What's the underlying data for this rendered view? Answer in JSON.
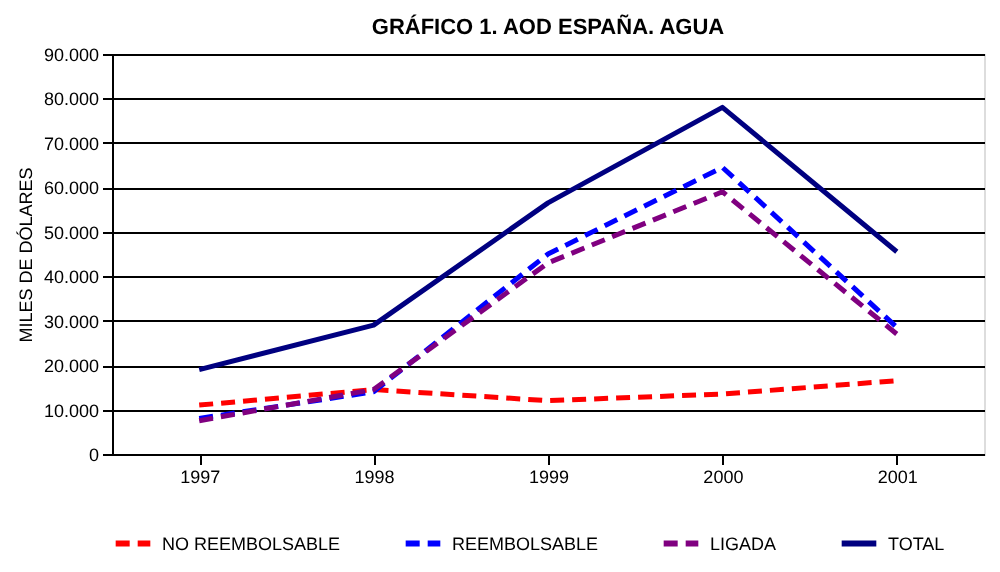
{
  "chart_data": {
    "type": "line",
    "title": "GRÁFICO 1. AOD ESPAÑA. AGUA",
    "ylabel": "MILES DE DÓLARES",
    "categories": [
      "1997",
      "1998",
      "1999",
      "2000",
      "2001"
    ],
    "series": [
      {
        "name": "NO REEMBOLSABLE",
        "color": "#ff0000",
        "line_style": "dashed",
        "values": [
          11000,
          14500,
          12000,
          13500,
          16500
        ]
      },
      {
        "name": "REEMBOLSABLE",
        "color": "#0000ff",
        "line_style": "dashed",
        "values": [
          8000,
          14000,
          45000,
          64500,
          28500
        ]
      },
      {
        "name": "LIGADA",
        "color": "#800080",
        "line_style": "dashed",
        "values": [
          7500,
          14500,
          43000,
          59000,
          27000
        ]
      },
      {
        "name": "TOTAL",
        "color": "#000080",
        "line_style": "solid",
        "values": [
          19000,
          29000,
          56500,
          78000,
          45500
        ]
      }
    ],
    "ylim": [
      0,
      90000
    ],
    "yticks": [
      {
        "value": 0,
        "label": "0"
      },
      {
        "value": 10000,
        "label": "10.000"
      },
      {
        "value": 20000,
        "label": "20.000"
      },
      {
        "value": 30000,
        "label": "30.000"
      },
      {
        "value": 40000,
        "label": "40.000"
      },
      {
        "value": 50000,
        "label": "50.000"
      },
      {
        "value": 60000,
        "label": "60.000"
      },
      {
        "value": 70000,
        "label": "70.000"
      },
      {
        "value": 80000,
        "label": "80.000"
      },
      {
        "value": 90000,
        "label": "90.000"
      }
    ],
    "grid": "y",
    "legend": "bottom",
    "marker": "none"
  }
}
